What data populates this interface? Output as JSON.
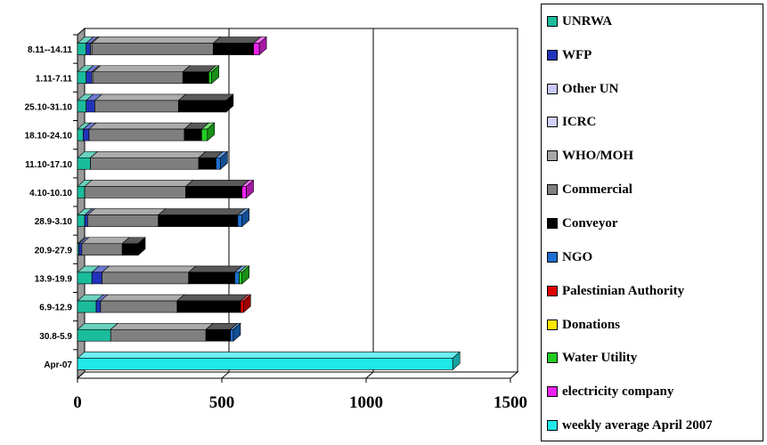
{
  "chart_data": {
    "type": "bar",
    "orientation": "horizontal",
    "stacked": true,
    "three_d": true,
    "title": "",
    "xlabel": "",
    "ylabel": "",
    "xlim": [
      0,
      1500
    ],
    "xticks": [
      0,
      500,
      1000,
      1500
    ],
    "grid": "vertical lines at 1000 and 1500",
    "legend_position": "right",
    "categories": [
      "8.11--14.11",
      "1.11-7.11",
      "25.10-31.10",
      "18.10-24.10",
      "11.10-17.10",
      "4.10-10.10",
      "28.9-3.10",
      "20.9-27.9",
      "13.9-19.9",
      "6.9-12.9",
      "30.8-5.9",
      "Apr-07"
    ],
    "series": [
      {
        "name": "UNRWA",
        "color": "#1ABC9C",
        "values": [
          30,
          30,
          30,
          20,
          45,
          25,
          25,
          5,
          50,
          65,
          115,
          0
        ]
      },
      {
        "name": "WFP",
        "color": "#2233BB",
        "values": [
          15,
          20,
          30,
          20,
          0,
          0,
          10,
          10,
          35,
          15,
          0,
          0
        ]
      },
      {
        "name": "Other UN",
        "color": "#C8C8F5",
        "values": [
          0,
          0,
          0,
          0,
          0,
          0,
          0,
          0,
          0,
          0,
          0,
          0
        ]
      },
      {
        "name": "ICRC",
        "color": "#D0D0F8",
        "values": [
          0,
          0,
          0,
          0,
          0,
          0,
          0,
          0,
          0,
          0,
          0,
          0
        ]
      },
      {
        "name": "WHO/MOH",
        "color": "#A6A6A6",
        "values": [
          5,
          5,
          0,
          0,
          0,
          0,
          0,
          0,
          0,
          0,
          0,
          0
        ]
      },
      {
        "name": "Commercial",
        "color": "#7F7F7F",
        "values": [
          420,
          310,
          290,
          330,
          375,
          350,
          245,
          140,
          300,
          265,
          330,
          0
        ]
      },
      {
        "name": "Conveyor",
        "color": "#000000",
        "values": [
          140,
          90,
          165,
          60,
          60,
          195,
          275,
          55,
          160,
          220,
          85,
          0
        ]
      },
      {
        "name": "NGO",
        "color": "#1E6FD0",
        "values": [
          0,
          0,
          0,
          0,
          15,
          0,
          15,
          0,
          15,
          0,
          10,
          0
        ]
      },
      {
        "name": "Palestinian Authority",
        "color": "#E00000",
        "values": [
          0,
          0,
          0,
          0,
          0,
          0,
          0,
          0,
          0,
          10,
          0,
          0
        ]
      },
      {
        "name": "Donations",
        "color": "#FFE600",
        "values": [
          0,
          0,
          0,
          0,
          0,
          0,
          0,
          0,
          0,
          0,
          0,
          0
        ]
      },
      {
        "name": "Water Utility",
        "color": "#22CC22",
        "values": [
          0,
          10,
          0,
          20,
          0,
          0,
          0,
          0,
          10,
          0,
          0,
          0
        ]
      },
      {
        "name": "electricity company",
        "color": "#EE22EE",
        "values": [
          20,
          0,
          0,
          0,
          0,
          15,
          0,
          0,
          0,
          0,
          0,
          0
        ]
      },
      {
        "name": "weekly average April 2007",
        "color": "#1FE8E8",
        "values": [
          0,
          0,
          0,
          0,
          0,
          0,
          0,
          0,
          0,
          0,
          0,
          1300
        ]
      }
    ]
  }
}
